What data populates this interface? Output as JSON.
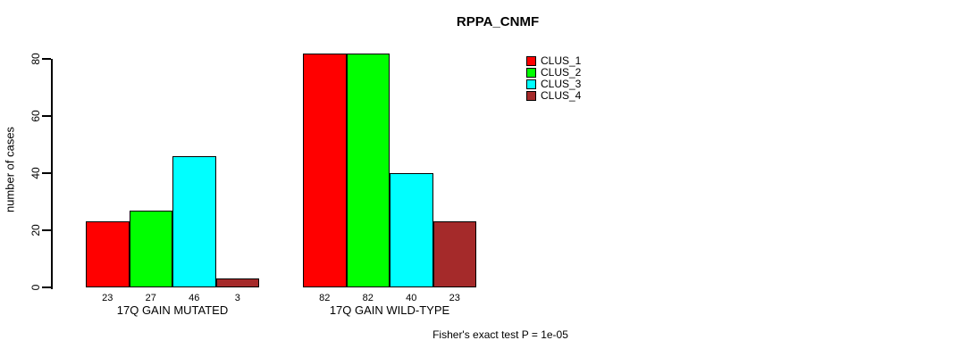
{
  "chart_data": {
    "type": "bar",
    "title": "RPPA_CNMF",
    "ylabel": "number of cases",
    "xlabel": "",
    "yticks": [
      0,
      20,
      40,
      60,
      80
    ],
    "ylim": [
      0,
      82
    ],
    "grid": false,
    "legend_position": "top-right",
    "bar_value_labels_shown": true,
    "annotation": "Fisher's exact test P = 1e-05",
    "categories": [
      "17Q GAIN MUTATED",
      "17Q GAIN WILD-TYPE"
    ],
    "series": [
      {
        "name": "CLUS_1",
        "color": "#FF0000",
        "values": [
          23,
          82
        ]
      },
      {
        "name": "CLUS_2",
        "color": "#00FF00",
        "values": [
          27,
          82
        ]
      },
      {
        "name": "CLUS_3",
        "color": "#00FFFF",
        "values": [
          46,
          40
        ]
      },
      {
        "name": "CLUS_4",
        "color": "#A52A2A",
        "values": [
          3,
          23
        ]
      }
    ],
    "colors": {
      "axis": "#000000",
      "text": "#000000",
      "background": "#FFFFFF",
      "bar_border": "#000000"
    }
  }
}
